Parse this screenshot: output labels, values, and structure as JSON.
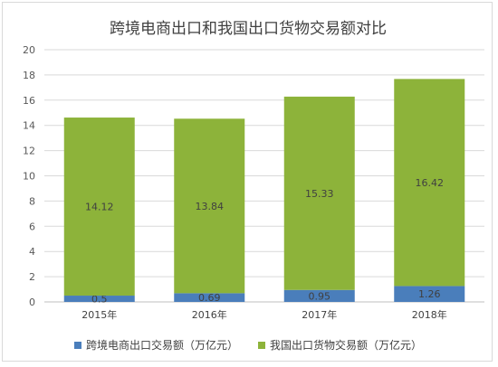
{
  "chart_data": {
    "type": "bar",
    "stacked": true,
    "title": "跨境电商出口和我国出口货物交易额对比",
    "categories": [
      "2015年",
      "2016年",
      "2017年",
      "2018年"
    ],
    "series": [
      {
        "name": "跨境电商出口交易额（万亿元）",
        "values": [
          0.5,
          0.69,
          0.95,
          1.26
        ],
        "labels": [
          "0.5",
          "0.69",
          "0.95",
          "1.26"
        ],
        "color": "#4a7ebb"
      },
      {
        "name": "我国出口货物交易额（万亿元）",
        "values": [
          14.12,
          13.84,
          15.33,
          16.42
        ],
        "labels": [
          "14.12",
          "13.84",
          "15.33",
          "16.42"
        ],
        "color": "#8db33a"
      }
    ],
    "ylim": [
      0,
      20
    ],
    "yticks": [
      "0",
      "2",
      "4",
      "6",
      "8",
      "10",
      "12",
      "14",
      "16",
      "18",
      "20"
    ],
    "grid": true,
    "legend_position": "bottom"
  }
}
